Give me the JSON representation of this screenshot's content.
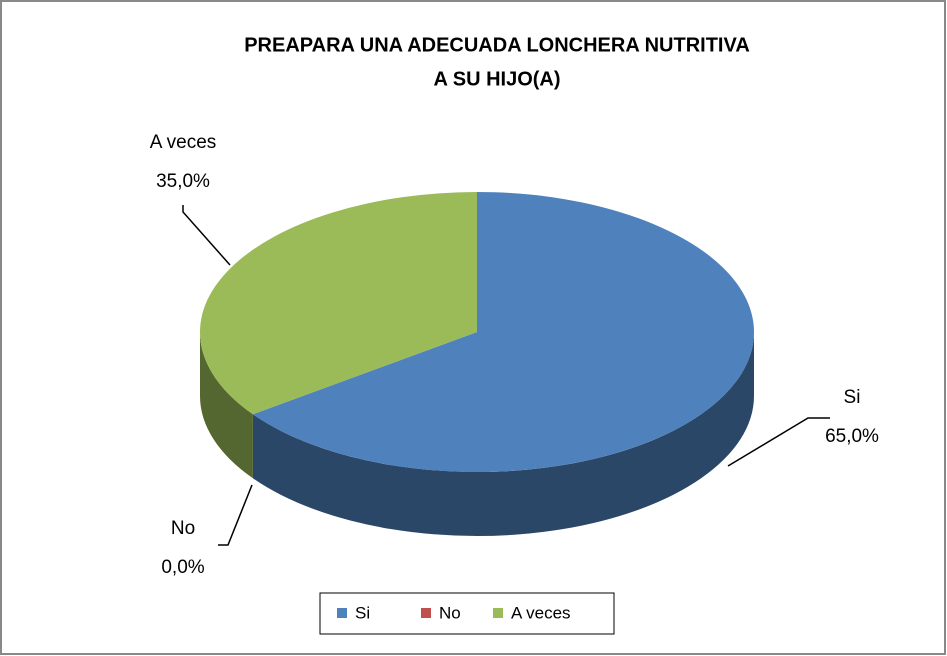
{
  "chart_data": {
    "type": "pie3d",
    "title": [
      "PREAPARA UNA ADECUADA LONCHERA NUTRITIVA",
      "A SU HIJO(A)"
    ],
    "categories": [
      "Si",
      "No",
      "A veces"
    ],
    "values": [
      65,
      0,
      35
    ],
    "value_labels": [
      "65,0%",
      "0,0%",
      "35,0%"
    ],
    "colors": [
      "#4f81bd",
      "#c0504d",
      "#9bbb59"
    ],
    "legend": "bottom"
  }
}
